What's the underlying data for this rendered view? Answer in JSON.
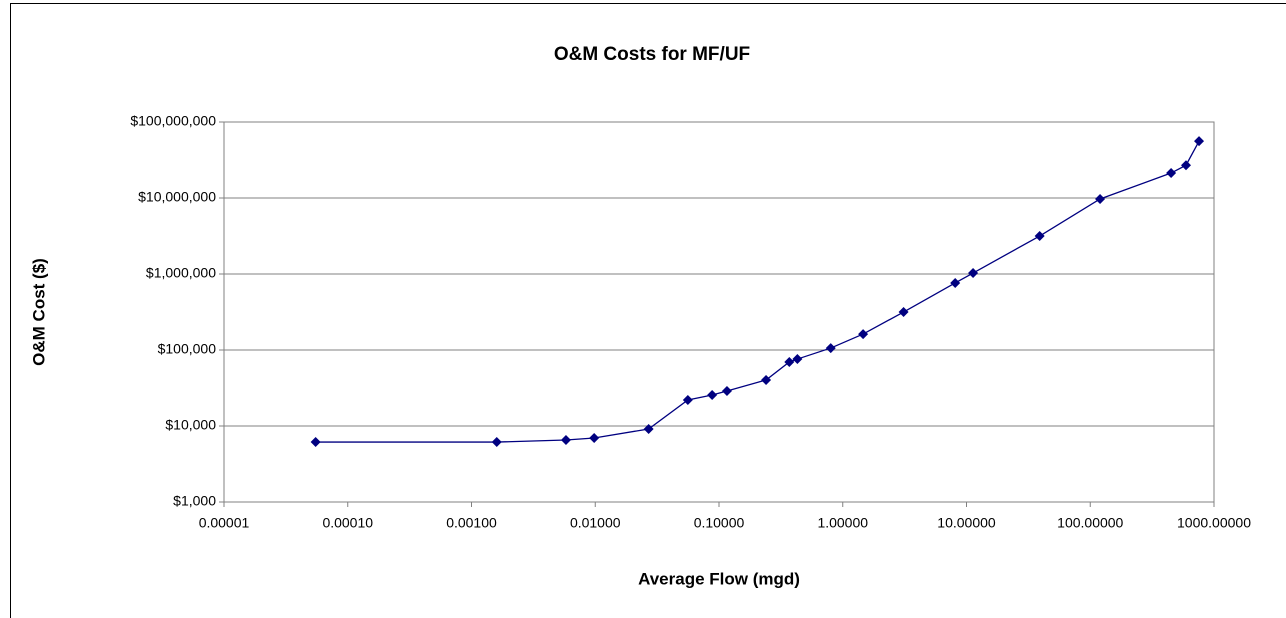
{
  "chart_data": {
    "type": "line",
    "title": "O&M Costs for MF/UF",
    "x_label": "Average Flow (mgd)",
    "y_label": "O&M Cost ($)",
    "x_log": true,
    "y_log": true,
    "grid": true,
    "xlim": [
      1e-05,
      1000
    ],
    "ylim": [
      1000,
      100000000
    ],
    "xticks": [
      {
        "value": 1e-05,
        "label": "0.00001"
      },
      {
        "value": 0.0001,
        "label": "0.00010"
      },
      {
        "value": 0.001,
        "label": "0.00100"
      },
      {
        "value": 0.01,
        "label": "0.01000"
      },
      {
        "value": 0.1,
        "label": "0.10000"
      },
      {
        "value": 1,
        "label": "1.00000"
      },
      {
        "value": 10,
        "label": "10.00000"
      },
      {
        "value": 100,
        "label": "100.00000"
      },
      {
        "value": 1000,
        "label": "1000.00000"
      }
    ],
    "yticks": [
      {
        "value": 1000,
        "label": "$1,000"
      },
      {
        "value": 10000,
        "label": "$10,000"
      },
      {
        "value": 100000,
        "label": "$100,000"
      },
      {
        "value": 1000000,
        "label": "$1,000,000"
      },
      {
        "value": 10000000,
        "label": "$10,000,000"
      },
      {
        "value": 100000000,
        "label": "$100,000,000"
      }
    ],
    "series": [
      {
        "color": "#000080",
        "x": [
          5.5e-05,
          0.0016,
          0.0058,
          0.0098,
          0.027,
          0.056,
          0.088,
          0.116,
          0.24,
          0.37,
          0.43,
          0.8,
          1.46,
          3.1,
          8.1,
          11.3,
          39,
          120,
          450,
          594,
          757
        ],
        "values": [
          6150,
          6150,
          6540,
          6950,
          9130,
          22000,
          25600,
          28900,
          40300,
          69500,
          76000,
          106000,
          162000,
          316000,
          762000,
          1030000,
          3160000,
          9700000,
          21300000,
          27000000,
          56000000
        ]
      }
    ]
  }
}
